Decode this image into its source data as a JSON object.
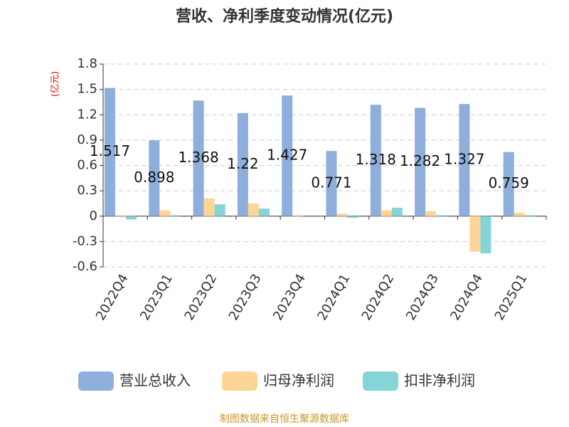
{
  "chart_data": {
    "type": "bar",
    "title": "营收、净利季度变动情况(亿元)",
    "y_label": "(亿元)",
    "source": "制图数据来自恒生聚源数据库",
    "categories": [
      "2022Q4",
      "2023Q1",
      "2023Q2",
      "2023Q3",
      "2023Q4",
      "2024Q1",
      "2024Q2",
      "2024Q3",
      "2024Q4",
      "2025Q1"
    ],
    "series": [
      {
        "name": "营业总收入",
        "color": "#8eaedb",
        "labels": true,
        "values": [
          1.517,
          0.898,
          1.368,
          1.22,
          1.427,
          0.771,
          1.318,
          1.282,
          1.327,
          0.759
        ]
      },
      {
        "name": "归母净利润",
        "color": "#fdd597",
        "values": [
          0.01,
          0.07,
          0.21,
          0.15,
          0.01,
          0.03,
          0.07,
          0.06,
          -0.42,
          0.04
        ]
      },
      {
        "name": "扣非净利润",
        "color": "#85d4d6",
        "values": [
          -0.04,
          0.01,
          0.14,
          0.09,
          0.0,
          -0.02,
          0.1,
          0.01,
          -0.44,
          0.01
        ]
      }
    ],
    "ylim": [
      -0.6,
      1.8
    ],
    "yticks": [
      1.8,
      1.5,
      1.2,
      0.9,
      0.6,
      0.3,
      0,
      -0.3,
      -0.6
    ],
    "grid": true,
    "legend": "bottom"
  }
}
